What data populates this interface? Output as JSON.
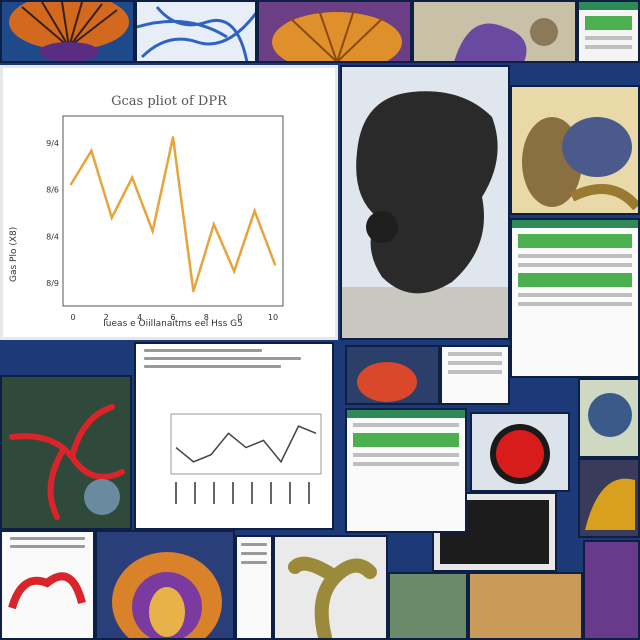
{
  "collage": {
    "tiles": [
      {
        "name": "orange-fan-creature",
        "kind": "photo"
      },
      {
        "name": "blue-network-painting",
        "kind": "photo"
      },
      {
        "name": "orange-bark-sculpture",
        "kind": "photo"
      },
      {
        "name": "purple-rock-photo",
        "kind": "photo"
      },
      {
        "name": "green-app-screenshot",
        "kind": "screenshot"
      },
      {
        "name": "black-coral-sculpture",
        "kind": "photo"
      },
      {
        "name": "tan-creature-sculpture",
        "kind": "photo"
      },
      {
        "name": "red-coral-painting",
        "kind": "photo"
      },
      {
        "name": "red-circle-device",
        "kind": "photo"
      },
      {
        "name": "dark-terminal-screenshot",
        "kind": "screenshot"
      },
      {
        "name": "orange-ring-sculpture",
        "kind": "photo"
      },
      {
        "name": "twisted-wood-sculpture",
        "kind": "photo"
      }
    ]
  },
  "chart_data": [
    {
      "type": "line",
      "title": "Gcas pliot of DPR",
      "xlabel": "Iueas e Oiillanaitms eel Hss G5",
      "ylabel": "Gas Plo (X8)",
      "x_ticks": [
        "0",
        "2",
        "4",
        "6",
        "8",
        "0",
        "10"
      ],
      "y_ticks": [
        "9/4",
        "8/6",
        "8/4",
        "8/9"
      ],
      "color": "#e8a33c",
      "series": [
        {
          "values": [
            1.7,
            2.2,
            1.2,
            1.8,
            1.0,
            2.4,
            0.1,
            1.1,
            0.4,
            1.3,
            0.5
          ]
        }
      ]
    },
    {
      "type": "line",
      "title": "",
      "color": "#444444",
      "series": [
        {
          "values": [
            3,
            1,
            2,
            5,
            3,
            4,
            1,
            6,
            5
          ]
        }
      ]
    }
  ]
}
